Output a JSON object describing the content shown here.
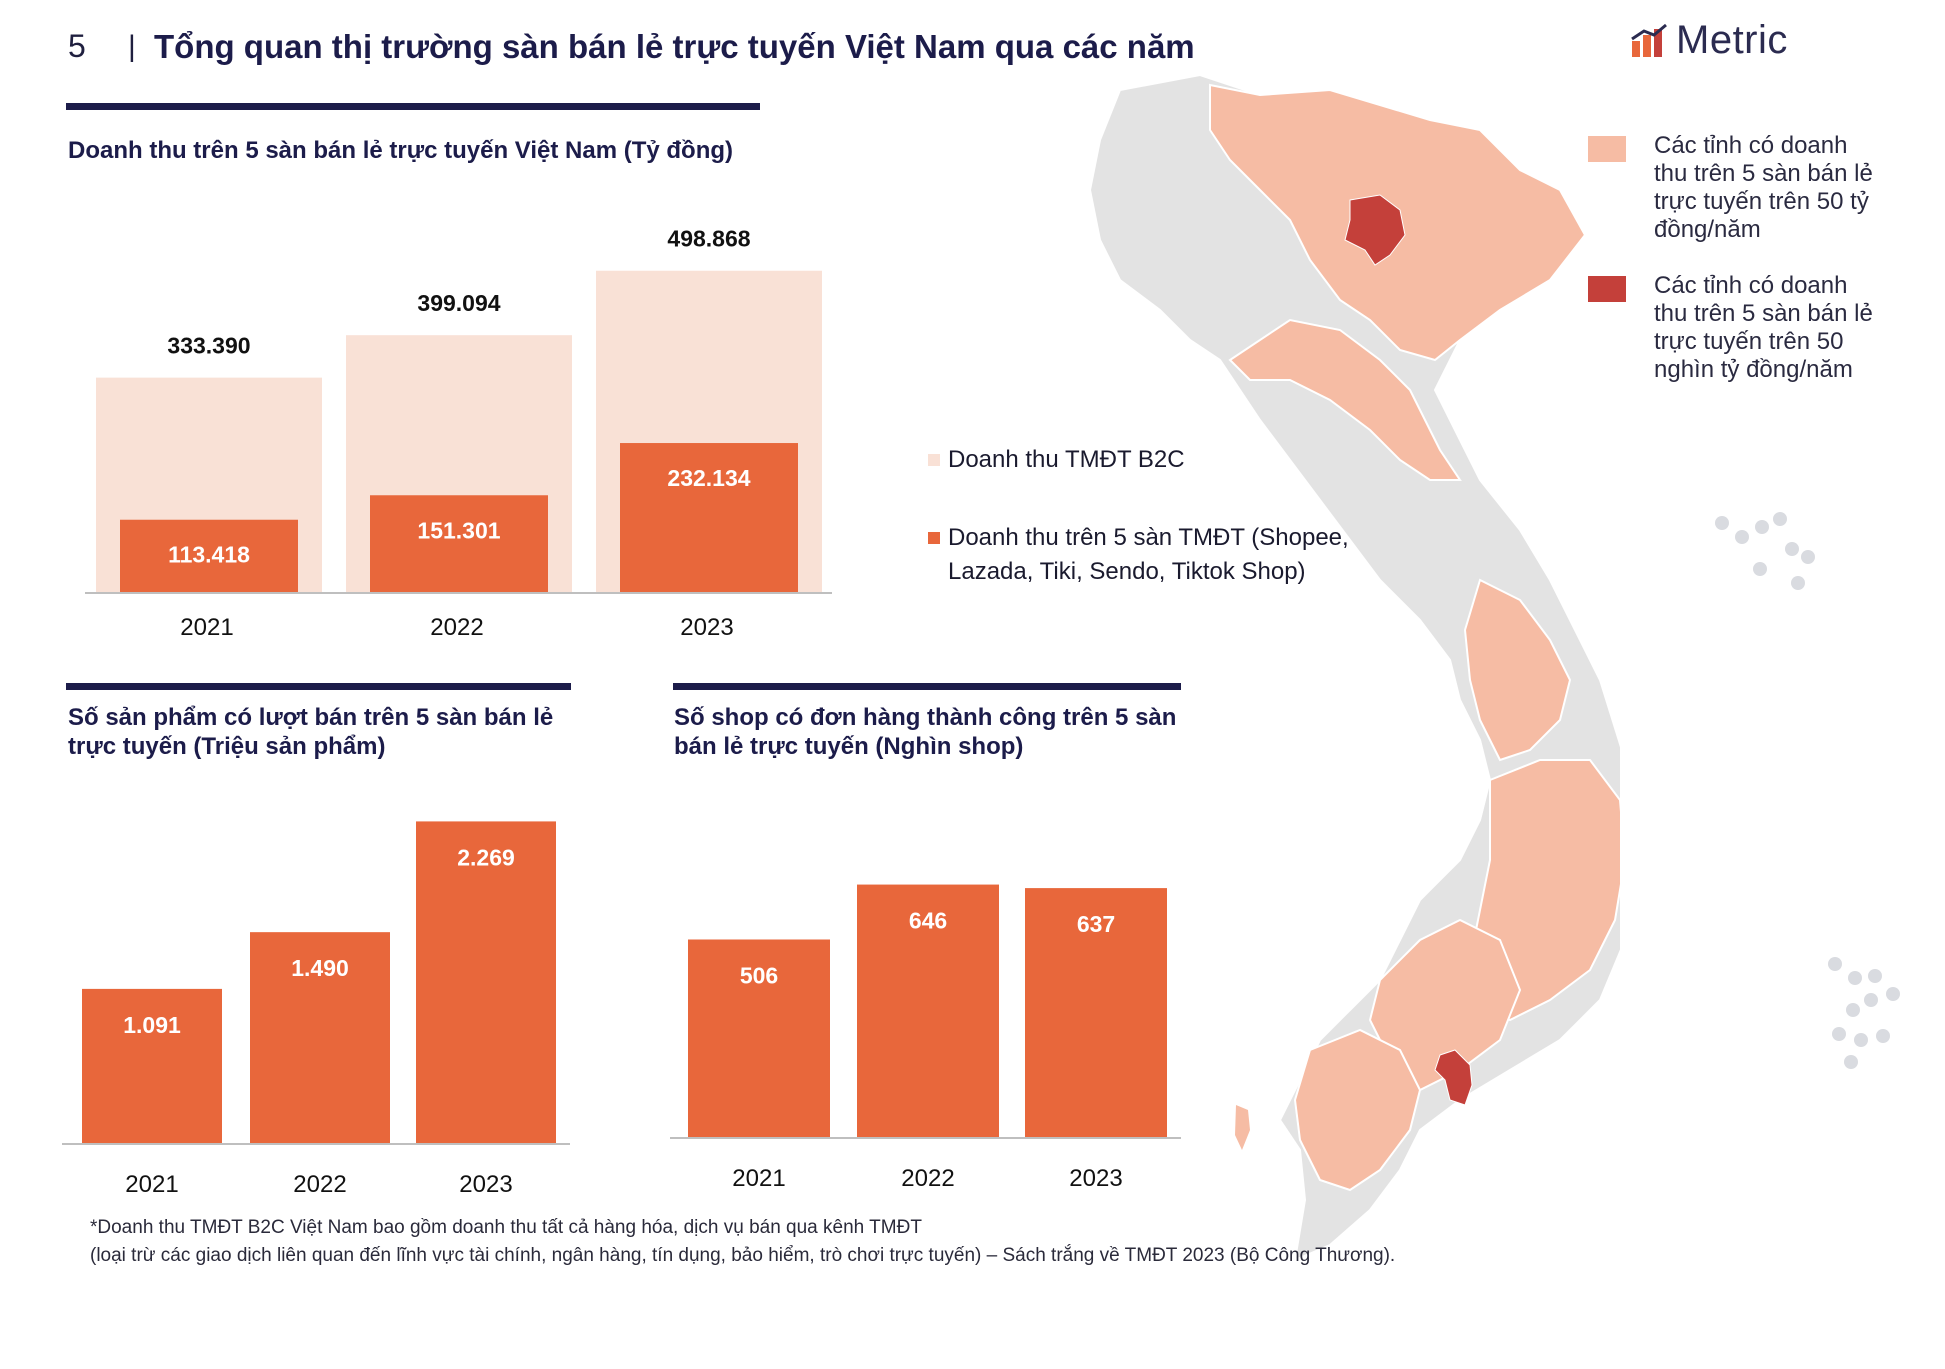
{
  "header": {
    "page_number": "5",
    "separator": "|",
    "title": "Tổng quan thị trường sàn bán lẻ trực tuyến Việt Nam qua các năm",
    "logo_text": "Metric"
  },
  "colors": {
    "navy": "#1c1c4a",
    "bar_primary": "#e8673b",
    "bar_light": "#f9e1d6",
    "map_light": "#f6bca4",
    "map_dark": "#c4403a",
    "map_grey": "#e3e3e3"
  },
  "chart_data": [
    {
      "type": "bar",
      "title": "Doanh thu trên 5 sàn bán lẻ trực tuyến Việt Nam (Tỷ đồng)",
      "categories": [
        "2021",
        "2022",
        "2023"
      ],
      "series": [
        {
          "name": "Doanh thu TMĐT B2C",
          "values": [
            333390,
            399094,
            498868
          ],
          "labels": [
            "333.390",
            "399.094",
            "498.868"
          ]
        },
        {
          "name": "Doanh thu trên 5 sàn TMĐT (Shopee, Lazada, Tiki, Sendo, Tiktok Shop)",
          "values": [
            113418,
            151301,
            232134
          ],
          "labels": [
            "113.418",
            "151.301",
            "232.134"
          ]
        }
      ],
      "ylim": [
        0,
        500000
      ],
      "legend": [
        "Doanh thu TMĐT B2C",
        "Doanh thu trên 5 sàn TMĐT (Shopee, Lazada, Tiki, Sendo, Tiktok Shop)"
      ]
    },
    {
      "type": "bar",
      "title": "Số sản phẩm có lượt bán trên 5 sàn bán lẻ trực tuyến (Triệu sản phẩm)",
      "categories": [
        "2021",
        "2022",
        "2023"
      ],
      "values": [
        1091,
        1490,
        2269
      ],
      "labels": [
        "1.091",
        "1.490",
        "2.269"
      ],
      "ylim": [
        0,
        2300
      ]
    },
    {
      "type": "bar",
      "title": "Số shop có đơn hàng thành công trên 5 sàn bán lẻ trực tuyến (Nghìn shop)",
      "categories": [
        "2021",
        "2022",
        "2023"
      ],
      "values": [
        506,
        646,
        637
      ],
      "labels": [
        "506",
        "646",
        "637"
      ],
      "ylim": [
        0,
        650
      ]
    }
  ],
  "map_legend": [
    {
      "text": "Các tỉnh có doanh thu trên 5 sàn bán lẻ trực tuyến trên 50 tỷ đồng/năm",
      "color": "#f6bca4"
    },
    {
      "text": "Các tỉnh có doanh thu trên 5 sàn bán lẻ trực tuyến trên 50 nghìn tỷ đồng/năm",
      "color": "#c4403a"
    }
  ],
  "footnote": {
    "line1": "*Doanh thu TMĐT B2C Việt Nam bao gồm doanh thu tất cả hàng hóa, dịch vụ bán qua kênh TMĐT",
    "line2": "(loại trừ các giao dịch liên quan đến lĩnh vực tài chính, ngân hàng, tín dụng, bảo hiểm, trò chơi trực tuyến) – Sách trắng về TMĐT 2023 (Bộ Công Thương)."
  }
}
